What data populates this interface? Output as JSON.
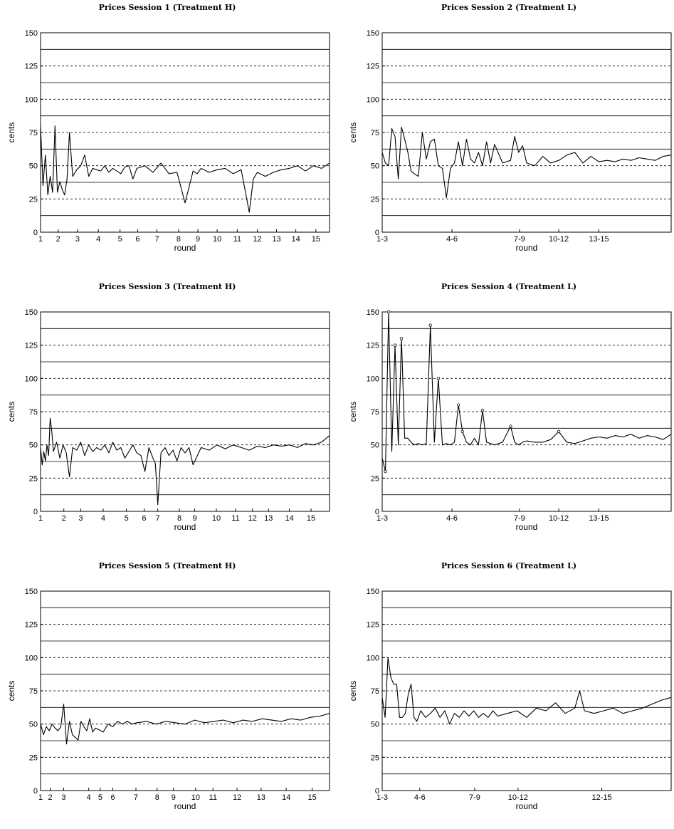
{
  "chart_data": [
    {
      "type": "line",
      "title": "Prices Session 1 (Treatment H)",
      "xlabel": "round",
      "ylabel": "cents",
      "ylim": [
        0,
        150
      ],
      "yticks": [
        "0",
        "25",
        "50",
        "75",
        "100",
        "125",
        "150"
      ],
      "xticks": [
        "1",
        "2",
        "3",
        "4",
        "5",
        "6",
        "7",
        "8",
        "9",
        "10",
        "11",
        "12",
        "13",
        "14",
        "15"
      ],
      "xtick_pos": [
        0,
        0.022,
        0.046,
        0.072,
        0.099,
        0.121,
        0.145,
        0.172,
        0.196,
        0.22,
        0.245,
        0.27,
        0.294,
        0.318,
        0.343
      ],
      "xmax": 0.36,
      "solid_lines": [
        12.5,
        37.5,
        62.5,
        87.5,
        112.5,
        137.5
      ],
      "dashed_lines": [
        25,
        50,
        75,
        100,
        125
      ],
      "markers": false,
      "series": [
        {
          "x": [
            0,
            0.003,
            0.006,
            0.009,
            0.012,
            0.015,
            0.018,
            0.021,
            0.024,
            0.027,
            0.03,
            0.033,
            0.036,
            0.04,
            0.045,
            0.05,
            0.055,
            0.06,
            0.065,
            0.07,
            0.075,
            0.08,
            0.085,
            0.09,
            0.095,
            0.1,
            0.105,
            0.11,
            0.115,
            0.12,
            0.13,
            0.14,
            0.15,
            0.16,
            0.17,
            0.18,
            0.19,
            0.195,
            0.2,
            0.21,
            0.22,
            0.23,
            0.24,
            0.25,
            0.26,
            0.265,
            0.27,
            0.28,
            0.29,
            0.3,
            0.31,
            0.32,
            0.33,
            0.34,
            0.35,
            0.36
          ],
          "y": [
            80,
            35,
            58,
            28,
            42,
            30,
            80,
            30,
            38,
            32,
            28,
            40,
            75,
            42,
            47,
            50,
            58,
            42,
            48,
            47,
            46,
            50,
            45,
            48,
            46,
            44,
            49,
            50,
            40,
            48,
            50,
            45,
            52,
            44,
            45,
            22,
            46,
            44,
            48,
            45,
            47,
            48,
            44,
            47,
            15,
            40,
            45,
            42,
            45,
            47,
            48,
            50,
            46,
            50,
            48,
            52
          ]
        }
      ]
    },
    {
      "type": "line",
      "title": "Prices Session 2 (Treatment L)",
      "xlabel": "round",
      "ylabel": "cents",
      "ylim": [
        0,
        150
      ],
      "yticks": [
        "0",
        "25",
        "50",
        "75",
        "100",
        "125",
        "150"
      ],
      "xticks": [
        "1-3",
        "4-6",
        "7-9",
        "10-12",
        "13-15"
      ],
      "xtick_pos": [
        0,
        0.087,
        0.171,
        0.22,
        0.27
      ],
      "xmax": 0.36,
      "solid_lines": [
        12.5,
        37.5,
        62.5,
        87.5,
        112.5,
        137.5
      ],
      "dashed_lines": [
        25,
        50,
        75,
        100,
        125
      ],
      "markers": false,
      "series": [
        {
          "x": [
            0,
            0.004,
            0.008,
            0.012,
            0.016,
            0.02,
            0.024,
            0.028,
            0.032,
            0.036,
            0.04,
            0.045,
            0.05,
            0.055,
            0.06,
            0.065,
            0.07,
            0.075,
            0.08,
            0.085,
            0.09,
            0.095,
            0.1,
            0.105,
            0.11,
            0.115,
            0.12,
            0.125,
            0.13,
            0.135,
            0.14,
            0.15,
            0.16,
            0.165,
            0.17,
            0.175,
            0.18,
            0.19,
            0.2,
            0.21,
            0.22,
            0.23,
            0.24,
            0.25,
            0.26,
            0.27,
            0.28,
            0.29,
            0.3,
            0.31,
            0.32,
            0.33,
            0.34,
            0.35,
            0.36
          ],
          "y": [
            60,
            52,
            50,
            78,
            72,
            40,
            79,
            70,
            60,
            46,
            44,
            42,
            75,
            55,
            68,
            70,
            50,
            48,
            26,
            48,
            52,
            68,
            50,
            70,
            55,
            52,
            60,
            50,
            68,
            52,
            66,
            52,
            54,
            72,
            60,
            65,
            52,
            50,
            57,
            52,
            54,
            58,
            60,
            52,
            57,
            53,
            54,
            53,
            55,
            54,
            56,
            55,
            54,
            57,
            58
          ]
        }
      ]
    },
    {
      "type": "line",
      "title": "Prices Session 3 (Treatment H)",
      "xlabel": "round",
      "ylabel": "cents",
      "ylim": [
        0,
        150
      ],
      "yticks": [
        "0",
        "25",
        "50",
        "75",
        "100",
        "125",
        "150"
      ],
      "xticks": [
        "1",
        "2",
        "3",
        "4",
        "5",
        "6",
        "7",
        "8",
        "9",
        "10",
        "11",
        "12",
        "13",
        "14",
        "15"
      ],
      "xtick_pos": [
        0,
        0.029,
        0.05,
        0.078,
        0.107,
        0.129,
        0.146,
        0.173,
        0.192,
        0.219,
        0.243,
        0.264,
        0.284,
        0.31,
        0.337
      ],
      "xmax": 0.36,
      "solid_lines": [
        12.5,
        37.5,
        62.5,
        87.5,
        112.5,
        137.5
      ],
      "dashed_lines": [
        25,
        50,
        75,
        100,
        125
      ],
      "markers": false,
      "series": [
        {
          "x": [
            0,
            0.002,
            0.004,
            0.006,
            0.008,
            0.01,
            0.012,
            0.014,
            0.016,
            0.02,
            0.024,
            0.028,
            0.032,
            0.036,
            0.04,
            0.045,
            0.05,
            0.055,
            0.06,
            0.065,
            0.07,
            0.075,
            0.08,
            0.085,
            0.09,
            0.095,
            0.1,
            0.105,
            0.11,
            0.115,
            0.12,
            0.125,
            0.13,
            0.135,
            0.14,
            0.143,
            0.146,
            0.15,
            0.155,
            0.16,
            0.165,
            0.17,
            0.175,
            0.18,
            0.185,
            0.19,
            0.2,
            0.21,
            0.22,
            0.23,
            0.24,
            0.25,
            0.26,
            0.27,
            0.28,
            0.29,
            0.3,
            0.31,
            0.32,
            0.33,
            0.34,
            0.35,
            0.36
          ],
          "y": [
            48,
            35,
            45,
            38,
            50,
            42,
            70,
            60,
            45,
            52,
            40,
            50,
            44,
            26,
            48,
            46,
            52,
            42,
            50,
            45,
            48,
            46,
            50,
            44,
            52,
            46,
            48,
            40,
            45,
            50,
            44,
            42,
            30,
            48,
            40,
            36,
            5,
            44,
            48,
            42,
            46,
            38,
            48,
            44,
            48,
            35,
            48,
            46,
            50,
            47,
            50,
            48,
            46,
            49,
            48,
            50,
            49,
            50,
            48,
            51,
            50,
            52,
            57
          ]
        }
      ]
    },
    {
      "type": "line",
      "title": "Prices Session 4 (Treatment L)",
      "xlabel": "round",
      "ylabel": "cents",
      "ylim": [
        0,
        150
      ],
      "yticks": [
        "0",
        "25",
        "50",
        "75",
        "100",
        "125",
        "150"
      ],
      "xticks": [
        "1-3",
        "4-6",
        "7-9",
        "10-12",
        "13-15"
      ],
      "xtick_pos": [
        0,
        0.087,
        0.171,
        0.22,
        0.27
      ],
      "xmax": 0.36,
      "solid_lines": [
        12.5,
        37.5,
        62.5,
        87.5,
        112.5,
        137.5
      ],
      "dashed_lines": [
        25,
        50,
        75,
        100,
        125
      ],
      "markers": true,
      "series": [
        {
          "x": [
            0,
            0.004,
            0.008,
            0.012,
            0.016,
            0.02,
            0.024,
            0.028,
            0.032,
            0.036,
            0.04,
            0.045,
            0.05,
            0.055,
            0.06,
            0.065,
            0.07,
            0.075,
            0.08,
            0.085,
            0.09,
            0.095,
            0.1,
            0.105,
            0.11,
            0.115,
            0.12,
            0.125,
            0.13,
            0.135,
            0.14,
            0.15,
            0.16,
            0.165,
            0.17,
            0.175,
            0.18,
            0.19,
            0.2,
            0.21,
            0.22,
            0.23,
            0.24,
            0.25,
            0.26,
            0.27,
            0.28,
            0.29,
            0.3,
            0.31,
            0.32,
            0.33,
            0.34,
            0.35,
            0.36
          ],
          "y": [
            40,
            30,
            150,
            45,
            125,
            50,
            130,
            55,
            55,
            52,
            50,
            51,
            50,
            51,
            140,
            52,
            100,
            50,
            51,
            50,
            52,
            80,
            60,
            52,
            50,
            55,
            50,
            76,
            52,
            51,
            50,
            52,
            64,
            52,
            50,
            52,
            53,
            52,
            52,
            54,
            60,
            52,
            51,
            53,
            55,
            56,
            55,
            57,
            56,
            58,
            55,
            57,
            56,
            54,
            58
          ]
        }
      ]
    },
    {
      "type": "line",
      "title": "Prices Session 5 (Treatment H)",
      "xlabel": "round",
      "ylabel": "cents",
      "ylim": [
        0,
        150
      ],
      "yticks": [
        "0",
        "25",
        "50",
        "75",
        "100",
        "125",
        "150"
      ],
      "xticks": [
        "1",
        "2",
        "3",
        "4",
        "5",
        "6",
        "7",
        "8",
        "9",
        "10",
        "11",
        "12",
        "13",
        "14",
        "15"
      ],
      "xtick_pos": [
        0,
        0.01,
        0.024,
        0.05,
        0.062,
        0.075,
        0.099,
        0.121,
        0.138,
        0.161,
        0.179,
        0.204,
        0.229,
        0.255,
        0.282
      ],
      "xmax": 0.3,
      "solid_lines": [
        12.5,
        37.5,
        62.5,
        87.5,
        112.5,
        137.5
      ],
      "dashed_lines": [
        25,
        50,
        75,
        100,
        125
      ],
      "markers": false,
      "series": [
        {
          "x": [
            0,
            0.003,
            0.006,
            0.009,
            0.012,
            0.015,
            0.018,
            0.021,
            0.024,
            0.027,
            0.03,
            0.033,
            0.036,
            0.039,
            0.042,
            0.045,
            0.048,
            0.051,
            0.054,
            0.057,
            0.06,
            0.065,
            0.07,
            0.075,
            0.08,
            0.085,
            0.09,
            0.095,
            0.1,
            0.11,
            0.12,
            0.13,
            0.14,
            0.15,
            0.16,
            0.17,
            0.18,
            0.19,
            0.2,
            0.21,
            0.22,
            0.23,
            0.24,
            0.25,
            0.26,
            0.27,
            0.28,
            0.29,
            0.3
          ],
          "y": [
            50,
            42,
            48,
            45,
            50,
            47,
            45,
            48,
            65,
            35,
            52,
            42,
            40,
            38,
            52,
            48,
            45,
            54,
            44,
            47,
            46,
            44,
            50,
            48,
            52,
            50,
            52,
            50,
            51,
            52,
            50,
            52,
            51,
            50,
            53,
            51,
            52,
            53,
            51,
            53,
            52,
            54,
            53,
            52,
            54,
            53,
            55,
            56,
            58
          ]
        }
      ]
    },
    {
      "type": "line",
      "title": "Prices Session 6 (Treatment L)",
      "xlabel": "round",
      "ylabel": "cents",
      "ylim": [
        0,
        150
      ],
      "yticks": [
        "0",
        "25",
        "50",
        "75",
        "100",
        "125",
        "150"
      ],
      "xticks": [
        "1-3",
        "4-6",
        "7-9",
        "10-12",
        "12-15"
      ],
      "xtick_pos": [
        0,
        0.039,
        0.096,
        0.141,
        0.228
      ],
      "xmax": 0.3,
      "solid_lines": [
        12.5,
        37.5,
        62.5,
        87.5,
        112.5,
        137.5
      ],
      "dashed_lines": [
        25,
        50,
        75,
        100,
        125
      ],
      "markers": false,
      "series": [
        {
          "x": [
            0,
            0.003,
            0.006,
            0.009,
            0.012,
            0.015,
            0.018,
            0.021,
            0.024,
            0.027,
            0.03,
            0.033,
            0.036,
            0.04,
            0.045,
            0.05,
            0.055,
            0.06,
            0.065,
            0.07,
            0.075,
            0.08,
            0.085,
            0.09,
            0.095,
            0.1,
            0.105,
            0.11,
            0.115,
            0.12,
            0.13,
            0.14,
            0.15,
            0.16,
            0.17,
            0.18,
            0.19,
            0.2,
            0.205,
            0.21,
            0.22,
            0.23,
            0.24,
            0.25,
            0.26,
            0.27,
            0.28,
            0.29,
            0.3
          ],
          "y": [
            70,
            55,
            100,
            85,
            80,
            80,
            55,
            55,
            58,
            72,
            80,
            55,
            52,
            60,
            55,
            58,
            62,
            55,
            60,
            50,
            58,
            55,
            60,
            56,
            60,
            55,
            58,
            55,
            60,
            56,
            58,
            60,
            55,
            62,
            60,
            66,
            58,
            62,
            75,
            60,
            58,
            60,
            62,
            58,
            60,
            62,
            65,
            68,
            70
          ]
        }
      ]
    }
  ]
}
